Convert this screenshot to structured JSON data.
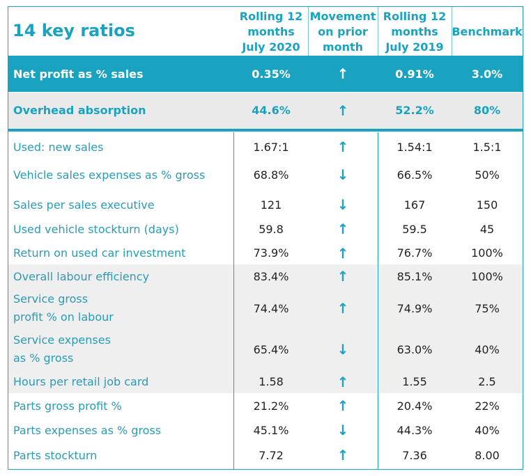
{
  "title": "14 key ratios",
  "headers": {
    "col1": [
      "Rolling 12",
      "months",
      "July 2020"
    ],
    "col2": [
      "Movement",
      "on prior",
      "month"
    ],
    "col3": [
      "Rolling 12",
      "months",
      "July 2019"
    ],
    "col4": "Benchmark"
  },
  "arrow_icons": {
    "up": "↑",
    "down": "↓"
  },
  "colors": {
    "accent": "#1aa3c0",
    "highlight_band": "#1aa3c0",
    "grey_band": "#eaeaea"
  },
  "rows": [
    {
      "label": "Net profit as % sales",
      "v2020": "0.35%",
      "move": "up",
      "v2019": "0.91%",
      "bench": "3.0%"
    },
    {
      "label": "Overhead absorption",
      "v2020": "44.6%",
      "move": "up",
      "v2019": "52.2%",
      "bench": "80%"
    },
    {
      "label": "Used: new sales",
      "v2020": "1.67:1",
      "move": "up",
      "v2019": "1.54:1",
      "bench": "1.5:1"
    },
    {
      "label": "Vehicle sales expenses as % gross",
      "v2020": "68.8%",
      "move": "down",
      "v2019": "66.5%",
      "bench": "50%"
    },
    {
      "label": "Sales per sales executive",
      "v2020": "121",
      "move": "down",
      "v2019": "167",
      "bench": "150"
    },
    {
      "label": "Used vehicle stockturn (days)",
      "v2020": "59.8",
      "move": "up",
      "v2019": "59.5",
      "bench": "45"
    },
    {
      "label": "Return on used car investment",
      "v2020": "73.9%",
      "move": "up",
      "v2019": "76.7%",
      "bench": "100%"
    },
    {
      "label": "Overall labour efficiency",
      "v2020": "83.4%",
      "move": "up",
      "v2019": "85.1%",
      "bench": "100%"
    },
    {
      "label_lines": [
        "Service gross",
        "profit % on labour"
      ],
      "v2020": "74.4%",
      "move": "up",
      "v2019": "74.9%",
      "bench": "75%"
    },
    {
      "label_lines": [
        "Service expenses",
        "as % gross"
      ],
      "v2020": "65.4%",
      "move": "down",
      "v2019": "63.0%",
      "bench": "40%"
    },
    {
      "label": "Hours per retail job card",
      "v2020": "1.58",
      "move": "up",
      "v2019": "1.55",
      "bench": "2.5"
    },
    {
      "label": "Parts gross profit %",
      "v2020": "21.2%",
      "move": "up",
      "v2019": "20.4%",
      "bench": "22%"
    },
    {
      "label": "Parts expenses as % gross",
      "v2020": "45.1%",
      "move": "down",
      "v2019": "44.3%",
      "bench": "40%"
    },
    {
      "label": "Parts stockturn",
      "v2020": "7.72",
      "move": "up",
      "v2019": "7.36",
      "bench": "8.00"
    }
  ]
}
